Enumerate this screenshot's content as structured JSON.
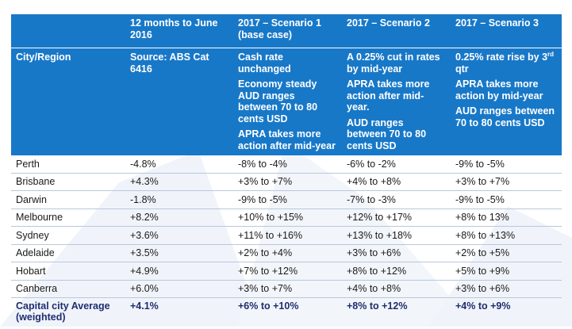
{
  "colors": {
    "header_bg": "#1878c8",
    "header_text": "#ffffff",
    "row_rule": "#b9c7dc",
    "average_text": "#1f2d6e"
  },
  "header": {
    "col1_top": "",
    "col2_top": "12 months to June 2016",
    "col3_top": "2017 – Scenario 1 (base case)",
    "col4_top": "2017 – Scenario 2",
    "col5_top": "2017 – Scenario 3",
    "city_region": "City/Region",
    "source": "Source: ABS Cat 6416",
    "s1": [
      "Cash rate unchanged",
      "Economy steady",
      "AUD ranges between 70 to 80 cents USD",
      "APRA takes more action after mid-year"
    ],
    "s2": [
      "A 0.25% cut in rates by mid-year",
      "APRA takes more action after mid-year.",
      "AUD ranges between 70 to 80 cents USD"
    ],
    "s3_first_pre": "0.25% rate rise by 3",
    "s3_first_sup": "rd",
    "s3_first_post": "qtr",
    "s3": [
      "APRA takes more action by mid-year",
      "AUD ranges between 70 to 80 cents USD"
    ]
  },
  "rows": [
    {
      "city": "Perth",
      "change": "-4.8%",
      "s1": "-8% to -4%",
      "s2": "-6% to -2%",
      "s3": "-9% to -5%"
    },
    {
      "city": "Brisbane",
      "change": "+4.3%",
      "s1": "+3% to +7%",
      "s2": "+4% to +8%",
      "s3": "+3% to +7%"
    },
    {
      "city": "Darwin",
      "change": "-1.8%",
      "s1": "-9% to -5%",
      "s2": "-7% to -3%",
      "s3": "-9% to -5%"
    },
    {
      "city": "Melbourne",
      "change": "+8.2%",
      "s1": "+10% to +15%",
      "s2": "+12% to +17%",
      "s3": "+8% to 13%"
    },
    {
      "city": "Sydney",
      "change": "+3.6%",
      "s1": "+11% to +16%",
      "s2": "+13% to +18%",
      "s3": "+8% to +13%"
    },
    {
      "city": "Adelaide",
      "change": "+3.5%",
      "s1": "+2% to +4%",
      "s2": "+3% to +6%",
      "s3": "+2% to +5%"
    },
    {
      "city": "Hobart",
      "change": "+4.9%",
      "s1": "+7% to +12%",
      "s2": "+8% to +12%",
      "s3": "+5% to +9%"
    },
    {
      "city": "Canberra",
      "change": "+6.0%",
      "s1": "+3% to +7%",
      "s2": "+4% to +8%",
      "s3": "+3% to +6%"
    }
  ],
  "average": {
    "city": "Capital city Average (weighted)",
    "change": "+4.1%",
    "s1": "+6% to +10%",
    "s2": "+8% to +12%",
    "s3": "+4% to +9%"
  }
}
